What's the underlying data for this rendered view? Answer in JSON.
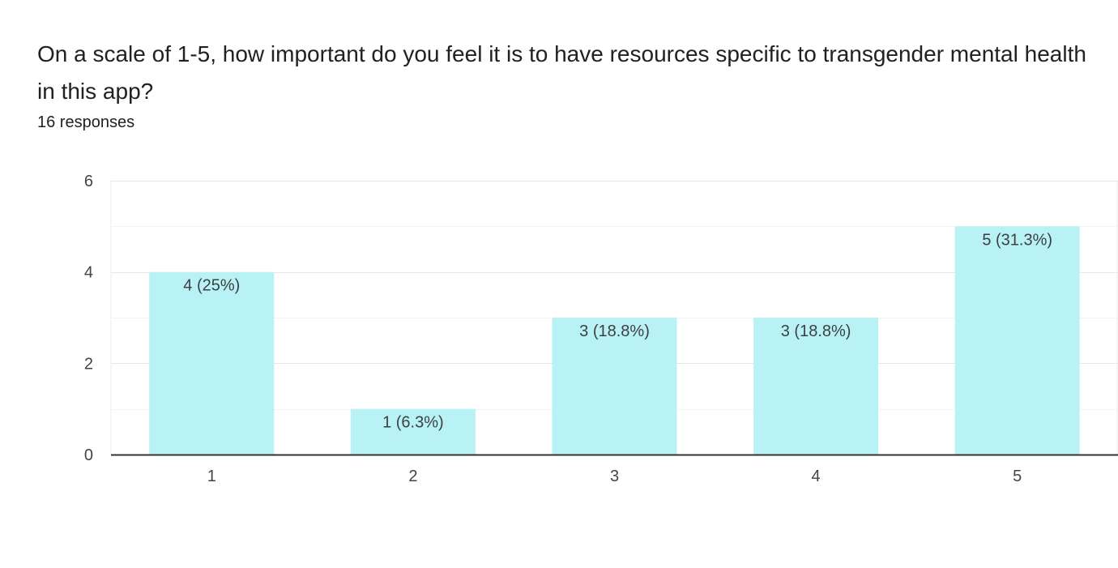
{
  "question": {
    "title": "On a scale of 1-5, how important do you feel it is to have resources specific to transgender mental health in this app?",
    "responses": "16 responses"
  },
  "colors": {
    "bar": "#b9f2f5",
    "grid": "#ebebeb",
    "baseline": "#333333"
  },
  "chart_data": {
    "type": "bar",
    "title": "",
    "xlabel": "",
    "ylabel": "",
    "categories": [
      "1",
      "2",
      "3",
      "4",
      "5"
    ],
    "values": [
      4,
      1,
      3,
      3,
      5
    ],
    "data_labels": [
      "4 (25%)",
      "1 (6.3%)",
      "3 (18.8%)",
      "3 (18.8%)",
      "5 (31.3%)"
    ],
    "ylim": [
      0,
      6
    ],
    "yticks": [
      0,
      2,
      4,
      6
    ],
    "grid": true
  }
}
